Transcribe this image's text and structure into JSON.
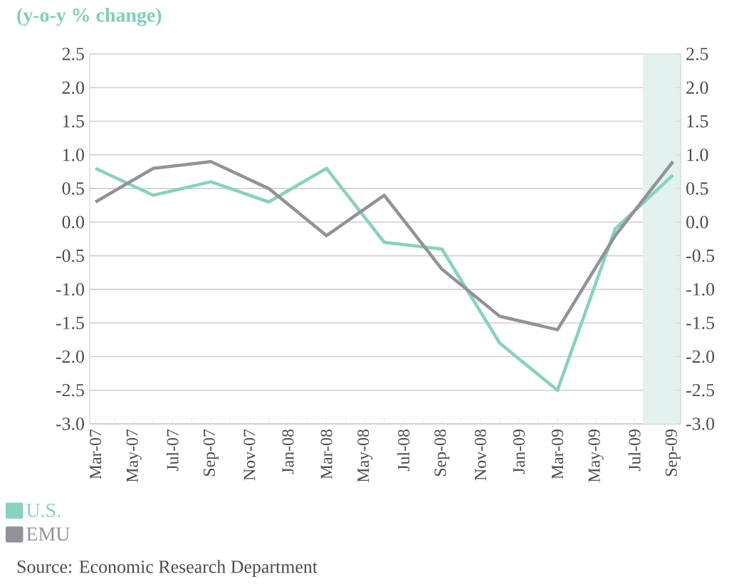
{
  "chart_data": {
    "type": "line",
    "title": "(y-o-y % change)",
    "x": [
      "2007-03",
      "2007-06",
      "2007-09",
      "2007-12",
      "2008-03",
      "2008-06",
      "2008-09",
      "2008-12",
      "2009-03",
      "2009-06",
      "2009-09"
    ],
    "series": [
      {
        "name": "U.S.",
        "color": "#88d1c0",
        "values": [
          0.8,
          0.4,
          0.6,
          0.3,
          0.8,
          -0.3,
          -0.4,
          -1.8,
          -2.5,
          -0.1,
          0.7
        ]
      },
      {
        "name": "EMU",
        "color": "#929396",
        "values": [
          0.3,
          0.8,
          0.9,
          0.5,
          -0.2,
          0.4,
          -0.7,
          -1.4,
          -1.6,
          -0.2,
          0.9
        ]
      }
    ],
    "xlim": [
      "2007-02-22",
      "2009-09-13"
    ],
    "xticks": [
      {
        "value": "2007-03",
        "label": "Mar-07"
      },
      {
        "value": "2007-04",
        "label": null
      },
      {
        "value": "2007-05",
        "label": "May-07"
      },
      {
        "value": "2007-06",
        "label": null
      },
      {
        "value": "2007-07",
        "label": "Jul-07"
      },
      {
        "value": "2007-08",
        "label": null
      },
      {
        "value": "2007-09",
        "label": "Sep-07"
      },
      {
        "value": "2007-10",
        "label": null
      },
      {
        "value": "2007-11",
        "label": "Nov-07"
      },
      {
        "value": "2007-12",
        "label": null
      },
      {
        "value": "2008-01",
        "label": "Jan-08"
      },
      {
        "value": "2008-02",
        "label": null
      },
      {
        "value": "2008-03",
        "label": "Mar-08"
      },
      {
        "value": "2008-04",
        "label": null
      },
      {
        "value": "2008-05",
        "label": "May-08"
      },
      {
        "value": "2008-06",
        "label": null
      },
      {
        "value": "2008-07",
        "label": "Jul-08"
      },
      {
        "value": "2008-08",
        "label": null
      },
      {
        "value": "2008-09",
        "label": "Sep-08"
      },
      {
        "value": "2008-10",
        "label": null
      },
      {
        "value": "2008-11",
        "label": "Nov-08"
      },
      {
        "value": "2008-12",
        "label": null
      },
      {
        "value": "2009-01",
        "label": "Jan-09"
      },
      {
        "value": "2009-02",
        "label": null
      },
      {
        "value": "2009-03",
        "label": "Mar-09"
      },
      {
        "value": "2009-04",
        "label": null
      },
      {
        "value": "2009-05",
        "label": "May-09"
      },
      {
        "value": "2009-06",
        "label": null
      },
      {
        "value": "2009-07",
        "label": "Jul-09"
      },
      {
        "value": "2009-08",
        "label": null
      },
      {
        "value": "2009-09",
        "label": "Sep-09"
      }
    ],
    "ylim": [
      -3,
      2.5
    ],
    "yticks": [
      {
        "value": -3,
        "label": "-3.0"
      },
      {
        "value": -2.5,
        "label": "-2.5"
      },
      {
        "value": -2,
        "label": "-2.0"
      },
      {
        "value": -1.5,
        "label": "-1.5"
      },
      {
        "value": -1,
        "label": "-1.0"
      },
      {
        "value": -0.5,
        "label": "-0.5"
      },
      {
        "value": 0,
        "label": "0.0"
      },
      {
        "value": 0.5,
        "label": "0.5"
      },
      {
        "value": 1,
        "label": "1.0"
      },
      {
        "value": 1.5,
        "label": "1.5"
      },
      {
        "value": 2,
        "label": "2.0"
      },
      {
        "value": 2.5,
        "label": "2.5"
      }
    ],
    "y2lim": [
      -3,
      2.5
    ],
    "y2ticks": [
      {
        "value": -3,
        "label": "-3.0"
      },
      {
        "value": -2.5,
        "label": "-2.5"
      },
      {
        "value": -2,
        "label": "-2.0"
      },
      {
        "value": -1.5,
        "label": "-1.5"
      },
      {
        "value": -1,
        "label": "-1.0"
      },
      {
        "value": -0.5,
        "label": "-0.5"
      },
      {
        "value": 0,
        "label": "0.0"
      },
      {
        "value": 0.5,
        "label": "0.5"
      },
      {
        "value": 1,
        "label": "1.0"
      },
      {
        "value": 1.5,
        "label": "1.5"
      },
      {
        "value": 2,
        "label": "2.0"
      },
      {
        "value": 2.5,
        "label": "2.5"
      }
    ],
    "bands": [
      {
        "axis": "x",
        "from": "2009-07-14",
        "to": "2009-09-13",
        "color": "#e3f2ee"
      }
    ],
    "grid": "y",
    "legend": "bottom left",
    "marker": "none",
    "line_style": "solid",
    "annotations": [
      "Source: Economic Research Department"
    ]
  }
}
